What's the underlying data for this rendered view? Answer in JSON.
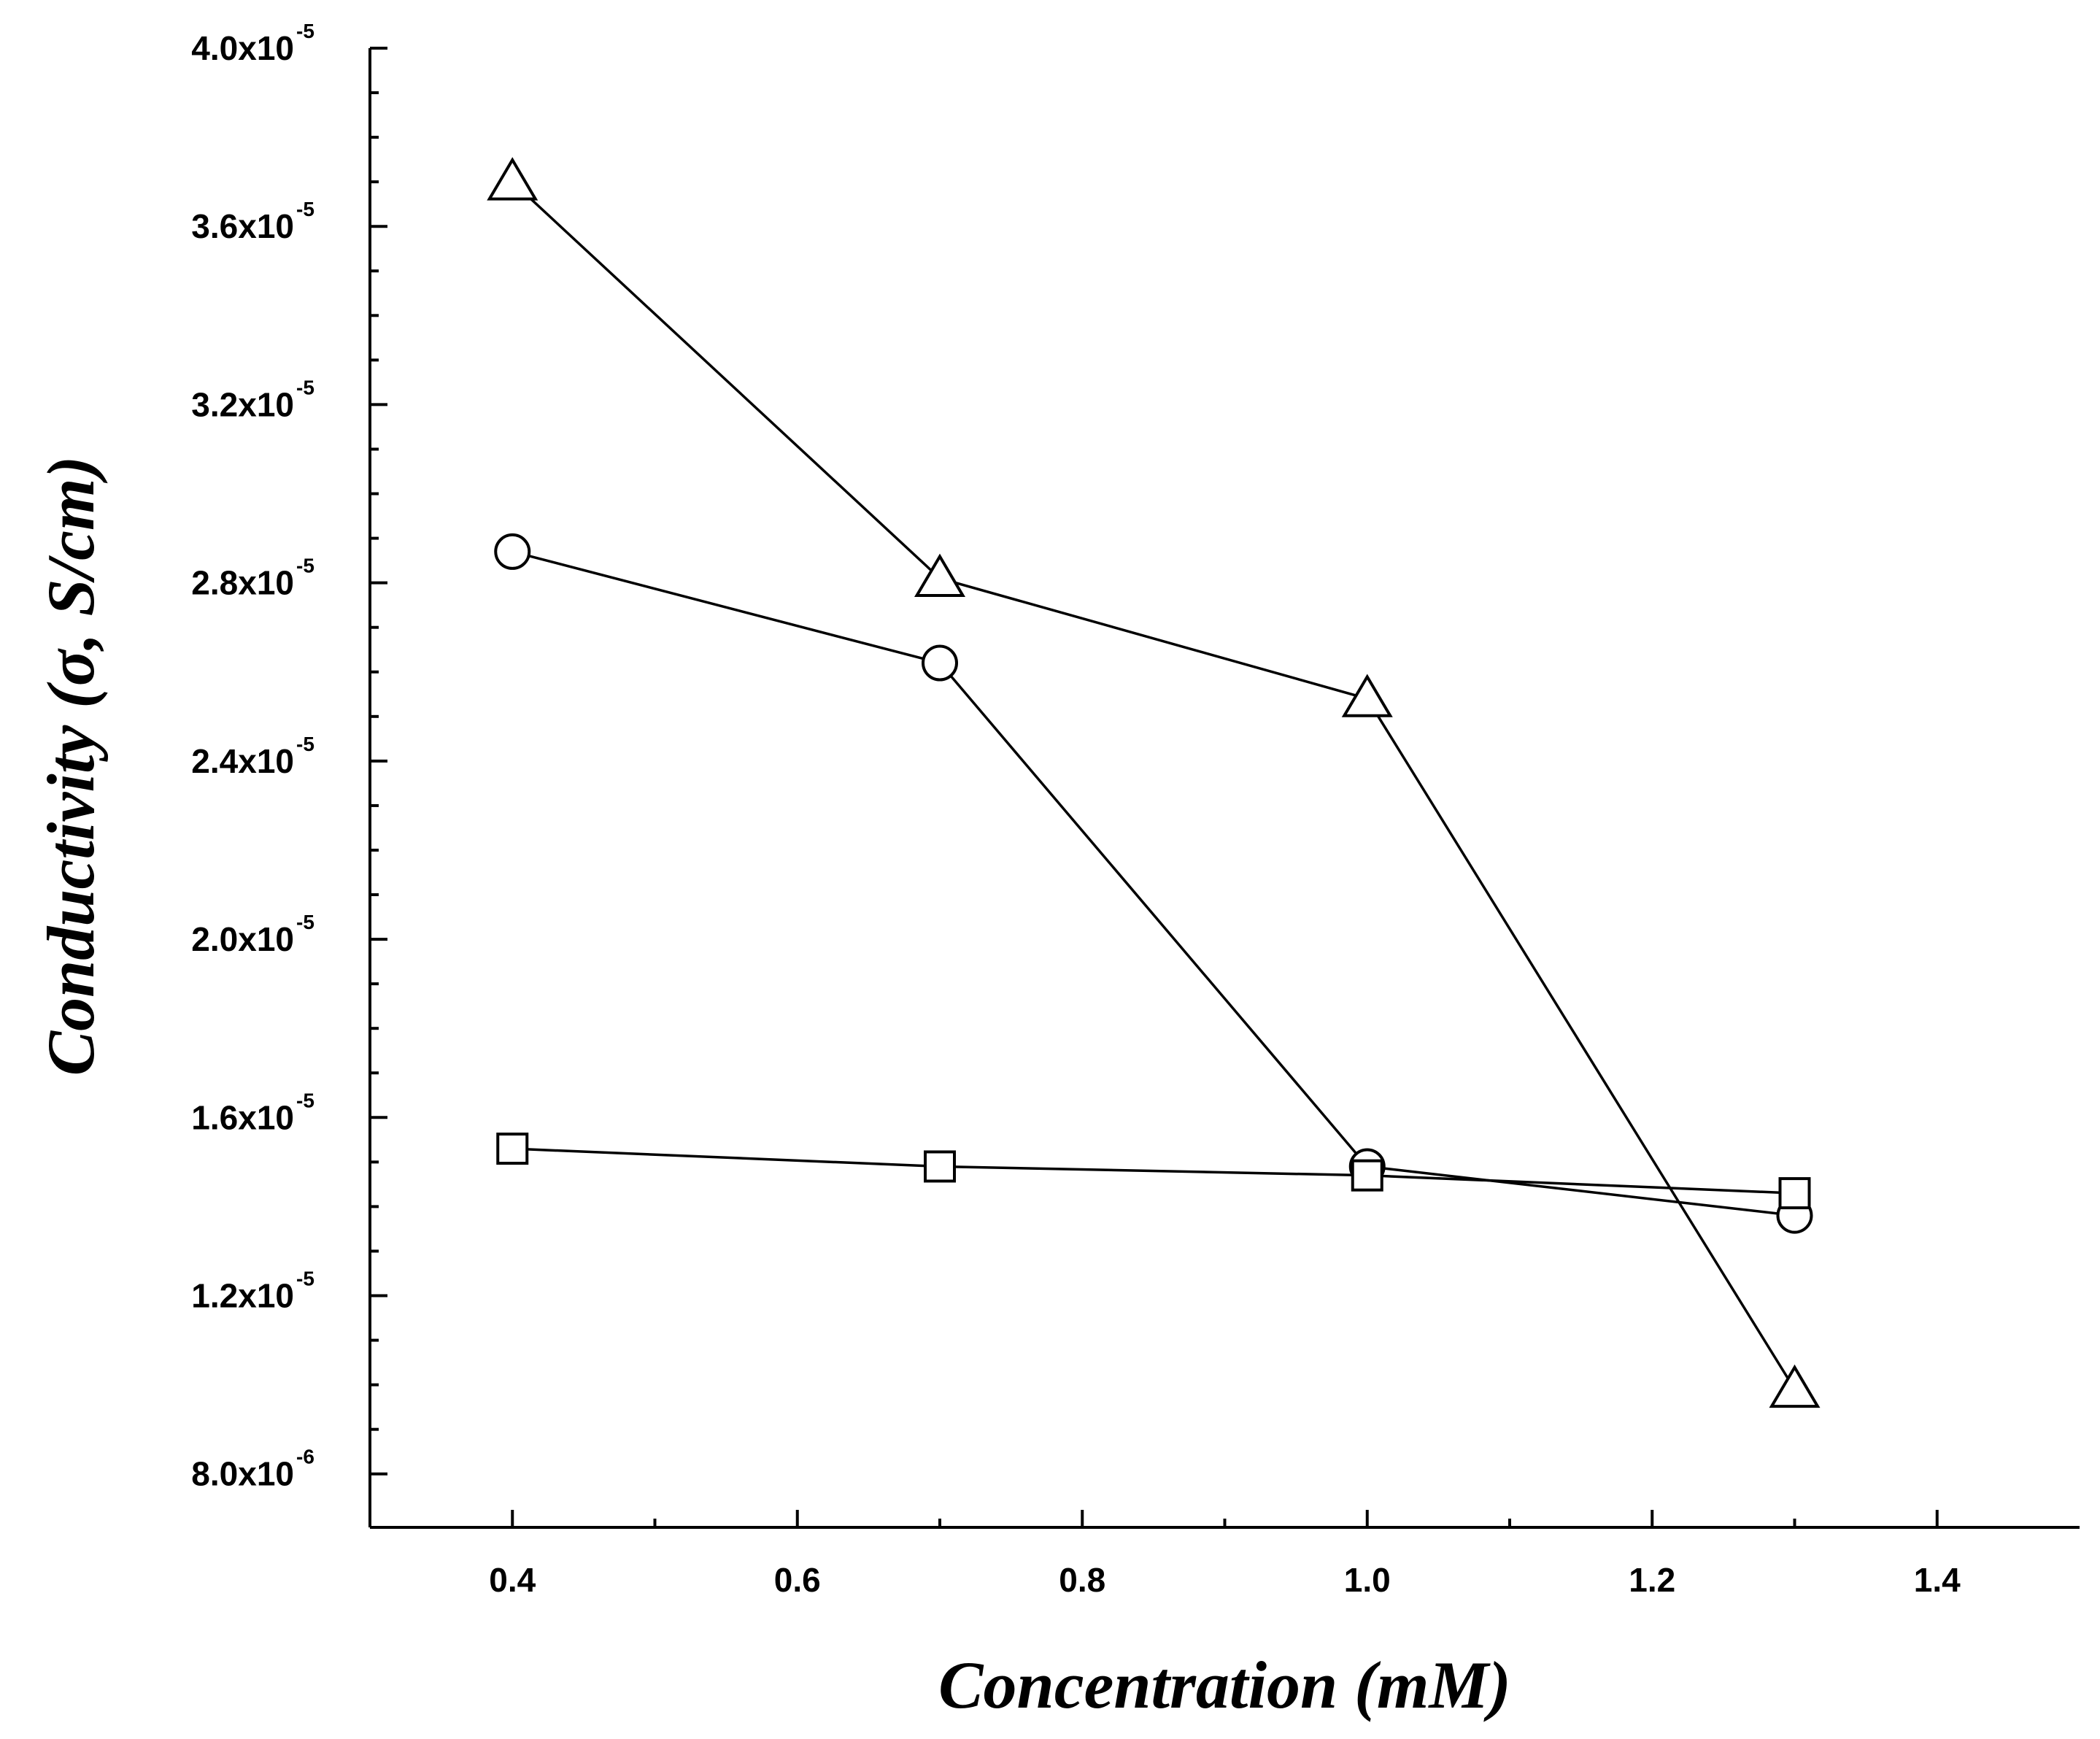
{
  "chart_data": {
    "type": "line",
    "title": "",
    "xlabel": "Concentration (mM)",
    "ylabel": "Conductivity (σ, S/cm)",
    "xlim": [
      0.3,
      1.5
    ],
    "ylim": [
      6.8e-06,
      4e-05
    ],
    "x": [
      0.4,
      0.7,
      1.0,
      1.3
    ],
    "x_ticks": [
      {
        "value": 0.4,
        "label": "0.4"
      },
      {
        "value": 0.6,
        "label": "0.6"
      },
      {
        "value": 0.8,
        "label": "0.8"
      },
      {
        "value": 1.0,
        "label": "1.0"
      },
      {
        "value": 1.2,
        "label": "1.2"
      },
      {
        "value": 1.4,
        "label": "1.4"
      }
    ],
    "y_ticks": [
      {
        "value": 8e-06,
        "mantissa": "8.0x10",
        "exp": "-6"
      },
      {
        "value": 1.2e-05,
        "mantissa": "1.2x10",
        "exp": "-5"
      },
      {
        "value": 1.6e-05,
        "mantissa": "1.6x10",
        "exp": "-5"
      },
      {
        "value": 2e-05,
        "mantissa": "2.0x10",
        "exp": "-5"
      },
      {
        "value": 2.4e-05,
        "mantissa": "2.4x10",
        "exp": "-5"
      },
      {
        "value": 2.8e-05,
        "mantissa": "2.8x10",
        "exp": "-5"
      },
      {
        "value": 3.2e-05,
        "mantissa": "3.2x10",
        "exp": "-5"
      },
      {
        "value": 3.6e-05,
        "mantissa": "3.6x10",
        "exp": "-5"
      },
      {
        "value": 4e-05,
        "mantissa": "4.0x10",
        "exp": "-5"
      }
    ],
    "series": [
      {
        "name": "triangle",
        "marker": "triangle",
        "values": [
          3.7e-05,
          2.81e-05,
          2.54e-05,
          9.9e-06
        ]
      },
      {
        "name": "circle",
        "marker": "circle",
        "values": [
          2.87e-05,
          2.62e-05,
          1.49e-05,
          1.38e-05
        ]
      },
      {
        "name": "square",
        "marker": "square",
        "values": [
          1.53e-05,
          1.49e-05,
          1.47e-05,
          1.43e-05
        ]
      }
    ],
    "grid": false,
    "legend": "none",
    "colors": {
      "line": "#000000",
      "marker_fill": "#ffffff"
    }
  }
}
